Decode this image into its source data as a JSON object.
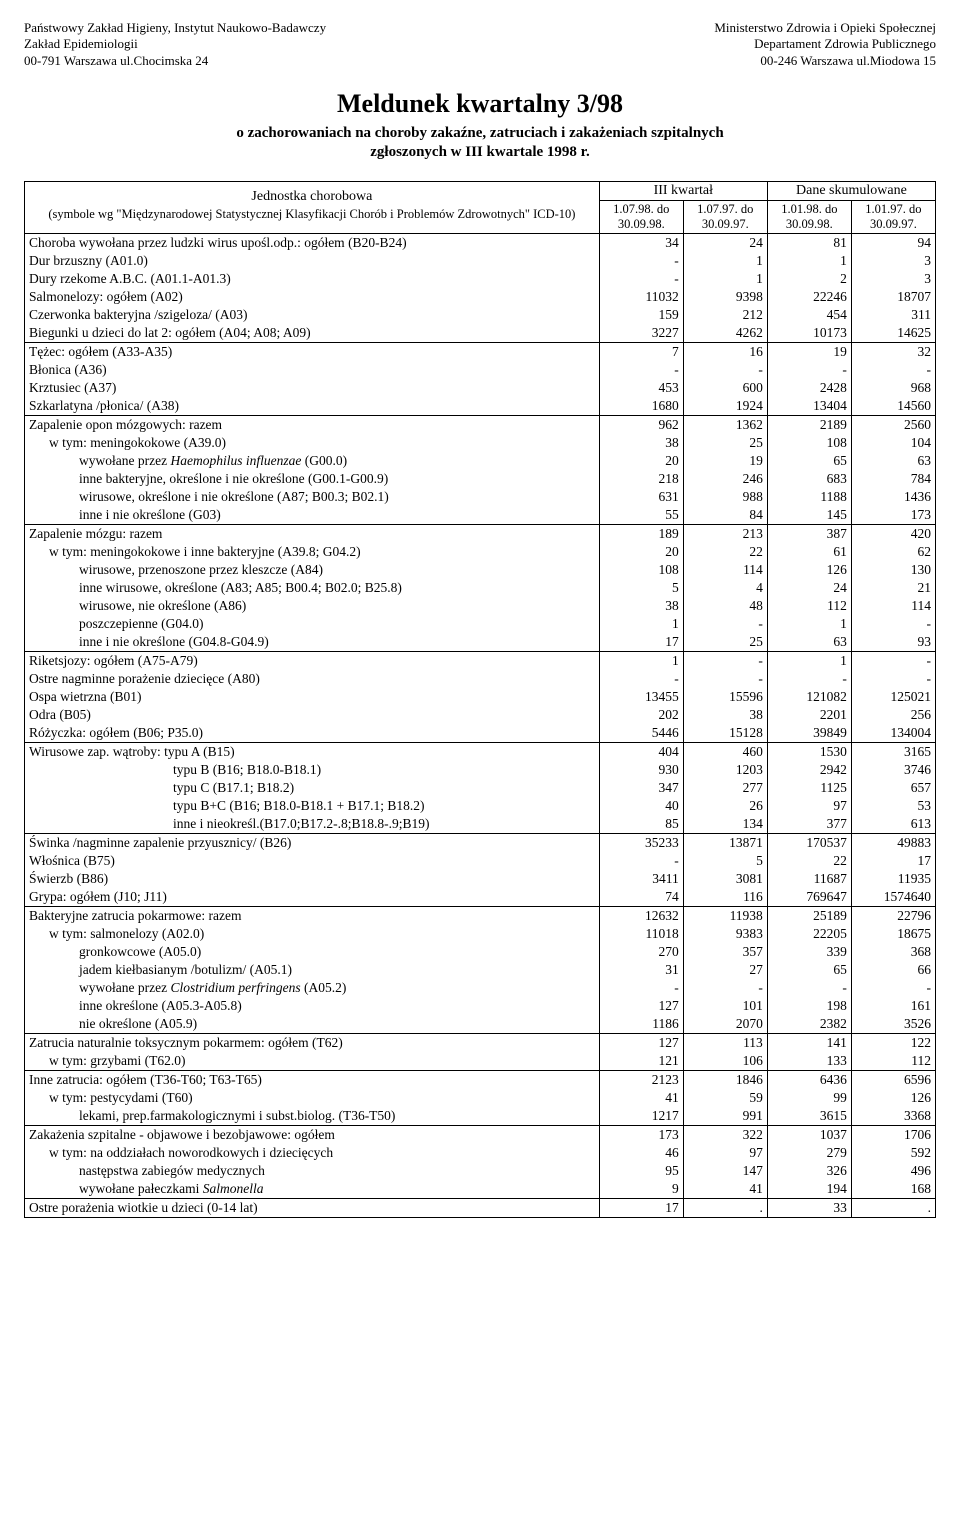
{
  "header": {
    "left": [
      "Państwowy Zakład Higieny, Instytut Naukowo-Badawczy",
      "Zakład Epidemiologii",
      "00-791 Warszawa ul.Chocimska 24"
    ],
    "right": [
      "Ministerstwo Zdrowia i Opieki Społecznej",
      "Departament Zdrowia Publicznego",
      "00-246 Warszawa ul.Miodowa 15"
    ]
  },
  "title": "Meldunek kwartalny 3/98",
  "subtitle1": "o zachorowaniach na choroby zakaźne, zatruciach i zakażeniach szpitalnych",
  "subtitle2": "zgłoszonych w III kwartale 1998 r.",
  "table": {
    "unit_label": "Jednostka chorobowa",
    "unit_sub": "(symbole wg \"Międzynarodowej Statystycznej Klasyfikacji Chorób i Problemów Zdrowotnych\" ICD-10)",
    "col_group1": "III kwartał",
    "col_group2": "Dane skumulowane",
    "periods": [
      "1.07.98. do 30.09.98.",
      "1.07.97. do 30.09.97.",
      "1.01.98. do 30.09.98.",
      "1.01.97. do 30.09.97."
    ],
    "sections": [
      {
        "rows": [
          {
            "label": "Choroba wywołana przez ludzki wirus upośl.odp.: ogółem (B20-B24)",
            "v": [
              "34",
              "24",
              "81",
              "94"
            ]
          },
          {
            "label": "Dur brzuszny (A01.0)",
            "v": [
              "-",
              "1",
              "1",
              "3"
            ]
          },
          {
            "label": "Dury rzekome A.B.C. (A01.1-A01.3)",
            "v": [
              "-",
              "1",
              "2",
              "3"
            ]
          },
          {
            "label": "Salmonelozy: ogółem (A02)",
            "v": [
              "11032",
              "9398",
              "22246",
              "18707"
            ]
          },
          {
            "label": "Czerwonka bakteryjna /szigeloza/ (A03)",
            "v": [
              "159",
              "212",
              "454",
              "311"
            ]
          },
          {
            "label": "Biegunki u dzieci do lat 2: ogółem (A04; A08; A09)",
            "v": [
              "3227",
              "4262",
              "10173",
              "14625"
            ]
          }
        ]
      },
      {
        "rows": [
          {
            "label": "Tężec: ogółem (A33-A35)",
            "v": [
              "7",
              "16",
              "19",
              "32"
            ]
          },
          {
            "label": "Błonica (A36)",
            "v": [
              "-",
              "-",
              "-",
              "-"
            ]
          },
          {
            "label": "Krztusiec (A37)",
            "v": [
              "453",
              "600",
              "2428",
              "968"
            ]
          },
          {
            "label": "Szkarlatyna /płonica/ (A38)",
            "v": [
              "1680",
              "1924",
              "13404",
              "14560"
            ]
          }
        ]
      },
      {
        "rows": [
          {
            "label": "Zapalenie opon mózgowych: razem",
            "v": [
              "962",
              "1362",
              "2189",
              "2560"
            ]
          },
          {
            "label": "w tym: meningokokowe (A39.0)",
            "indent": 1,
            "v": [
              "38",
              "25",
              "108",
              "104"
            ]
          },
          {
            "label": "wywołane przez Haemophilus influenzae (G00.0)",
            "indent": 2,
            "v": [
              "20",
              "19",
              "65",
              "63"
            ],
            "ital_part": "Haemophilus influenzae"
          },
          {
            "label": "inne bakteryjne, określone i nie określone (G00.1-G00.9)",
            "indent": 2,
            "v": [
              "218",
              "246",
              "683",
              "784"
            ]
          },
          {
            "label": "wirusowe, określone i nie określone (A87; B00.3; B02.1)",
            "indent": 2,
            "v": [
              "631",
              "988",
              "1188",
              "1436"
            ]
          },
          {
            "label": "inne i nie określone (G03)",
            "indent": 2,
            "v": [
              "55",
              "84",
              "145",
              "173"
            ]
          }
        ]
      },
      {
        "rows": [
          {
            "label": "Zapalenie mózgu: razem",
            "v": [
              "189",
              "213",
              "387",
              "420"
            ]
          },
          {
            "label": "w tym: meningokokowe i inne bakteryjne (A39.8; G04.2)",
            "indent": 1,
            "v": [
              "20",
              "22",
              "61",
              "62"
            ]
          },
          {
            "label": "wirusowe, przenoszone przez kleszcze (A84)",
            "indent": 2,
            "v": [
              "108",
              "114",
              "126",
              "130"
            ]
          },
          {
            "label": "inne wirusowe, określone (A83; A85; B00.4; B02.0; B25.8)",
            "indent": 2,
            "v": [
              "5",
              "4",
              "24",
              "21"
            ]
          },
          {
            "label": "wirusowe, nie określone (A86)",
            "indent": 2,
            "v": [
              "38",
              "48",
              "112",
              "114"
            ]
          },
          {
            "label": "poszczepienne (G04.0)",
            "indent": 2,
            "v": [
              "1",
              "-",
              "1",
              "-"
            ]
          },
          {
            "label": "inne i nie określone (G04.8-G04.9)",
            "indent": 2,
            "v": [
              "17",
              "25",
              "63",
              "93"
            ]
          }
        ]
      },
      {
        "rows": [
          {
            "label": "Riketsjozy: ogółem (A75-A79)",
            "v": [
              "1",
              "-",
              "1",
              "-"
            ]
          },
          {
            "label": "Ostre nagminne porażenie dziecięce (A80)",
            "v": [
              "-",
              "-",
              "-",
              "-"
            ]
          },
          {
            "label": "Ospa wietrzna (B01)",
            "v": [
              "13455",
              "15596",
              "121082",
              "125021"
            ]
          },
          {
            "label": "Odra (B05)",
            "v": [
              "202",
              "38",
              "2201",
              "256"
            ]
          },
          {
            "label": "Różyczka: ogółem (B06; P35.0)",
            "v": [
              "5446",
              "15128",
              "39849",
              "134004"
            ]
          }
        ]
      },
      {
        "rows": [
          {
            "label": "Wirusowe zap. wątroby: typu A (B15)",
            "v": [
              "404",
              "460",
              "1530",
              "3165"
            ]
          },
          {
            "label": "typu B (B16; B18.0-B18.1)",
            "indent": "hep",
            "v": [
              "930",
              "1203",
              "2942",
              "3746"
            ]
          },
          {
            "label": "typu C (B17.1; B18.2)",
            "indent": "hep",
            "v": [
              "347",
              "277",
              "1125",
              "657"
            ]
          },
          {
            "label": "typu B+C (B16; B18.0-B18.1 + B17.1; B18.2)",
            "indent": "hep",
            "v": [
              "40",
              "26",
              "97",
              "53"
            ]
          },
          {
            "label": "inne i nieokreśl.(B17.0;B17.2-.8;B18.8-.9;B19)",
            "indent": "hep",
            "v": [
              "85",
              "134",
              "377",
              "613"
            ]
          }
        ]
      },
      {
        "rows": [
          {
            "label": "Świnka /nagminne zapalenie przyusznicy/ (B26)",
            "v": [
              "35233",
              "13871",
              "170537",
              "49883"
            ]
          },
          {
            "label": "Włośnica (B75)",
            "v": [
              "-",
              "5",
              "22",
              "17"
            ]
          },
          {
            "label": "Świerzb (B86)",
            "v": [
              "3411",
              "3081",
              "11687",
              "11935"
            ]
          },
          {
            "label": "Grypa: ogółem (J10; J11)",
            "v": [
              "74",
              "116",
              "769647",
              "1574640"
            ]
          }
        ]
      },
      {
        "rows": [
          {
            "label": "Bakteryjne zatrucia pokarmowe: razem",
            "v": [
              "12632",
              "11938",
              "25189",
              "22796"
            ]
          },
          {
            "label": "w tym: salmonelozy (A02.0)",
            "indent": 1,
            "v": [
              "11018",
              "9383",
              "22205",
              "18675"
            ]
          },
          {
            "label": "gronkowcowe (A05.0)",
            "indent": 2,
            "v": [
              "270",
              "357",
              "339",
              "368"
            ]
          },
          {
            "label": "jadem kiełbasianym /botulizm/ (A05.1)",
            "indent": 2,
            "v": [
              "31",
              "27",
              "65",
              "66"
            ]
          },
          {
            "label": "wywołane przez Clostridium perfringens (A05.2)",
            "indent": 2,
            "v": [
              "-",
              "-",
              "-",
              "-"
            ],
            "ital_part": "Clostridium perfringens"
          },
          {
            "label": "inne określone (A05.3-A05.8)",
            "indent": 2,
            "v": [
              "127",
              "101",
              "198",
              "161"
            ]
          },
          {
            "label": "nie określone (A05.9)",
            "indent": 2,
            "v": [
              "1186",
              "2070",
              "2382",
              "3526"
            ]
          }
        ]
      },
      {
        "rows": [
          {
            "label": "Zatrucia naturalnie toksycznym pokarmem: ogółem (T62)",
            "v": [
              "127",
              "113",
              "141",
              "122"
            ]
          },
          {
            "label": "w tym: grzybami (T62.0)",
            "indent": 1,
            "v": [
              "121",
              "106",
              "133",
              "112"
            ]
          }
        ]
      },
      {
        "rows": [
          {
            "label": "Inne zatrucia: ogółem (T36-T60; T63-T65)",
            "v": [
              "2123",
              "1846",
              "6436",
              "6596"
            ]
          },
          {
            "label": "w tym: pestycydami (T60)",
            "indent": 1,
            "v": [
              "41",
              "59",
              "99",
              "126"
            ]
          },
          {
            "label": "lekami, prep.farmakologicznymi i subst.biolog. (T36-T50)",
            "indent": 2,
            "v": [
              "1217",
              "991",
              "3615",
              "3368"
            ]
          }
        ]
      },
      {
        "rows": [
          {
            "label": "Zakażenia szpitalne - objawowe i bezobjawowe: ogółem",
            "v": [
              "173",
              "322",
              "1037",
              "1706"
            ]
          },
          {
            "label": "w tym: na oddziałach noworodkowych i dziecięcych",
            "indent": 1,
            "v": [
              "46",
              "97",
              "279",
              "592"
            ]
          },
          {
            "label": "następstwa zabiegów medycznych",
            "indent": 2,
            "v": [
              "95",
              "147",
              "326",
              "496"
            ]
          },
          {
            "label": "wywołane pałeczkami Salmonella",
            "indent": 2,
            "v": [
              "9",
              "41",
              "194",
              "168"
            ],
            "ital_part": "Salmonella"
          }
        ]
      },
      {
        "rows": [
          {
            "label": "Ostre porażenia wiotkie u dzieci (0-14 lat)",
            "v": [
              "17",
              ".",
              "33",
              "."
            ]
          }
        ]
      }
    ]
  }
}
